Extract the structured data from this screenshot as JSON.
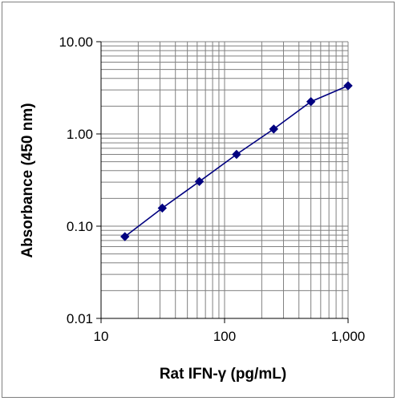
{
  "chart_data": {
    "type": "line",
    "title": "",
    "xlabel": "Rat IFN-γ (pg/mL)",
    "ylabel": "Absorbance (450 nm)",
    "x_scale": "log",
    "y_scale": "log",
    "xlim": [
      10,
      1000
    ],
    "ylim": [
      0.01,
      10
    ],
    "x_ticks": [
      10,
      100,
      1000
    ],
    "x_tick_labels": [
      "10",
      "100",
      "1,000"
    ],
    "y_ticks": [
      0.01,
      0.1,
      1,
      10
    ],
    "y_tick_labels": [
      "0.01",
      "0.10",
      "1.00",
      "10.00"
    ],
    "grid": "major and minor",
    "legend": "none",
    "series": [
      {
        "x": [
          15.6,
          31.3,
          62.5,
          125,
          250,
          500,
          1000
        ],
        "y": [
          0.077,
          0.157,
          0.305,
          0.6,
          1.13,
          2.24,
          3.33
        ],
        "color": "#000080",
        "marker": "diamond"
      }
    ]
  }
}
